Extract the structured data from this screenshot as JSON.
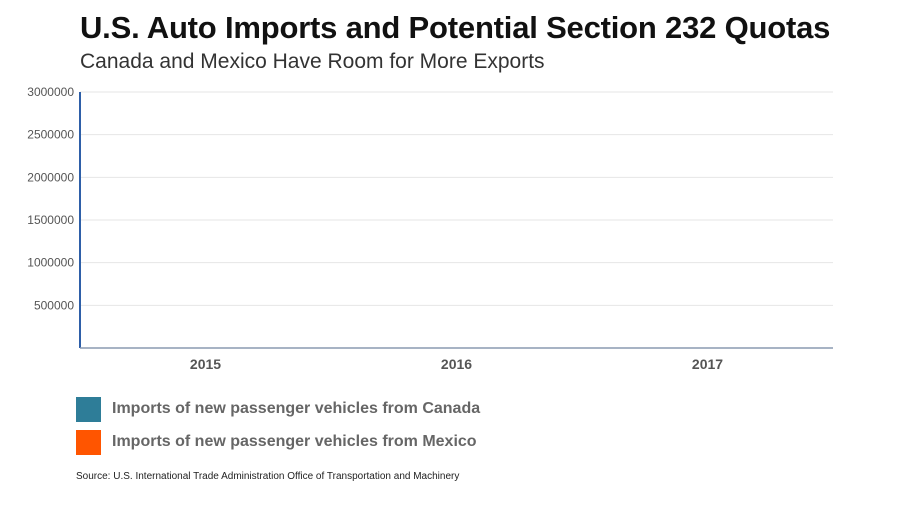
{
  "colors": {
    "canada": "#2e7d98",
    "mexico": "#ff5500",
    "axis": "#2e5fa8",
    "grid": "#e6e6e6",
    "tick_text": "#555555"
  },
  "chart_data": {
    "type": "bar",
    "title": "U.S. Auto Imports and Potential Section 232 Quotas",
    "subtitle": "Canada and Mexico Have Room for More Exports",
    "categories": [
      "2015",
      "2016",
      "2017"
    ],
    "ylim": [
      0,
      3000000
    ],
    "yticks": [
      "500000",
      "1000000",
      "1500000",
      "2000000",
      "2500000",
      "3000000"
    ],
    "grid": true,
    "legend_position": "bottom-left",
    "series": [
      {
        "name": "Imports of new passenger vehicles from Canada",
        "color": "#2e7d98",
        "values": [
          null,
          null,
          null
        ]
      },
      {
        "name": "Imports of new passenger vehicles from Mexico",
        "color": "#ff5500",
        "values": [
          null,
          null,
          null
        ]
      }
    ],
    "source": "Source: U.S. International Trade Administration Office of Transportation and Machinery"
  }
}
